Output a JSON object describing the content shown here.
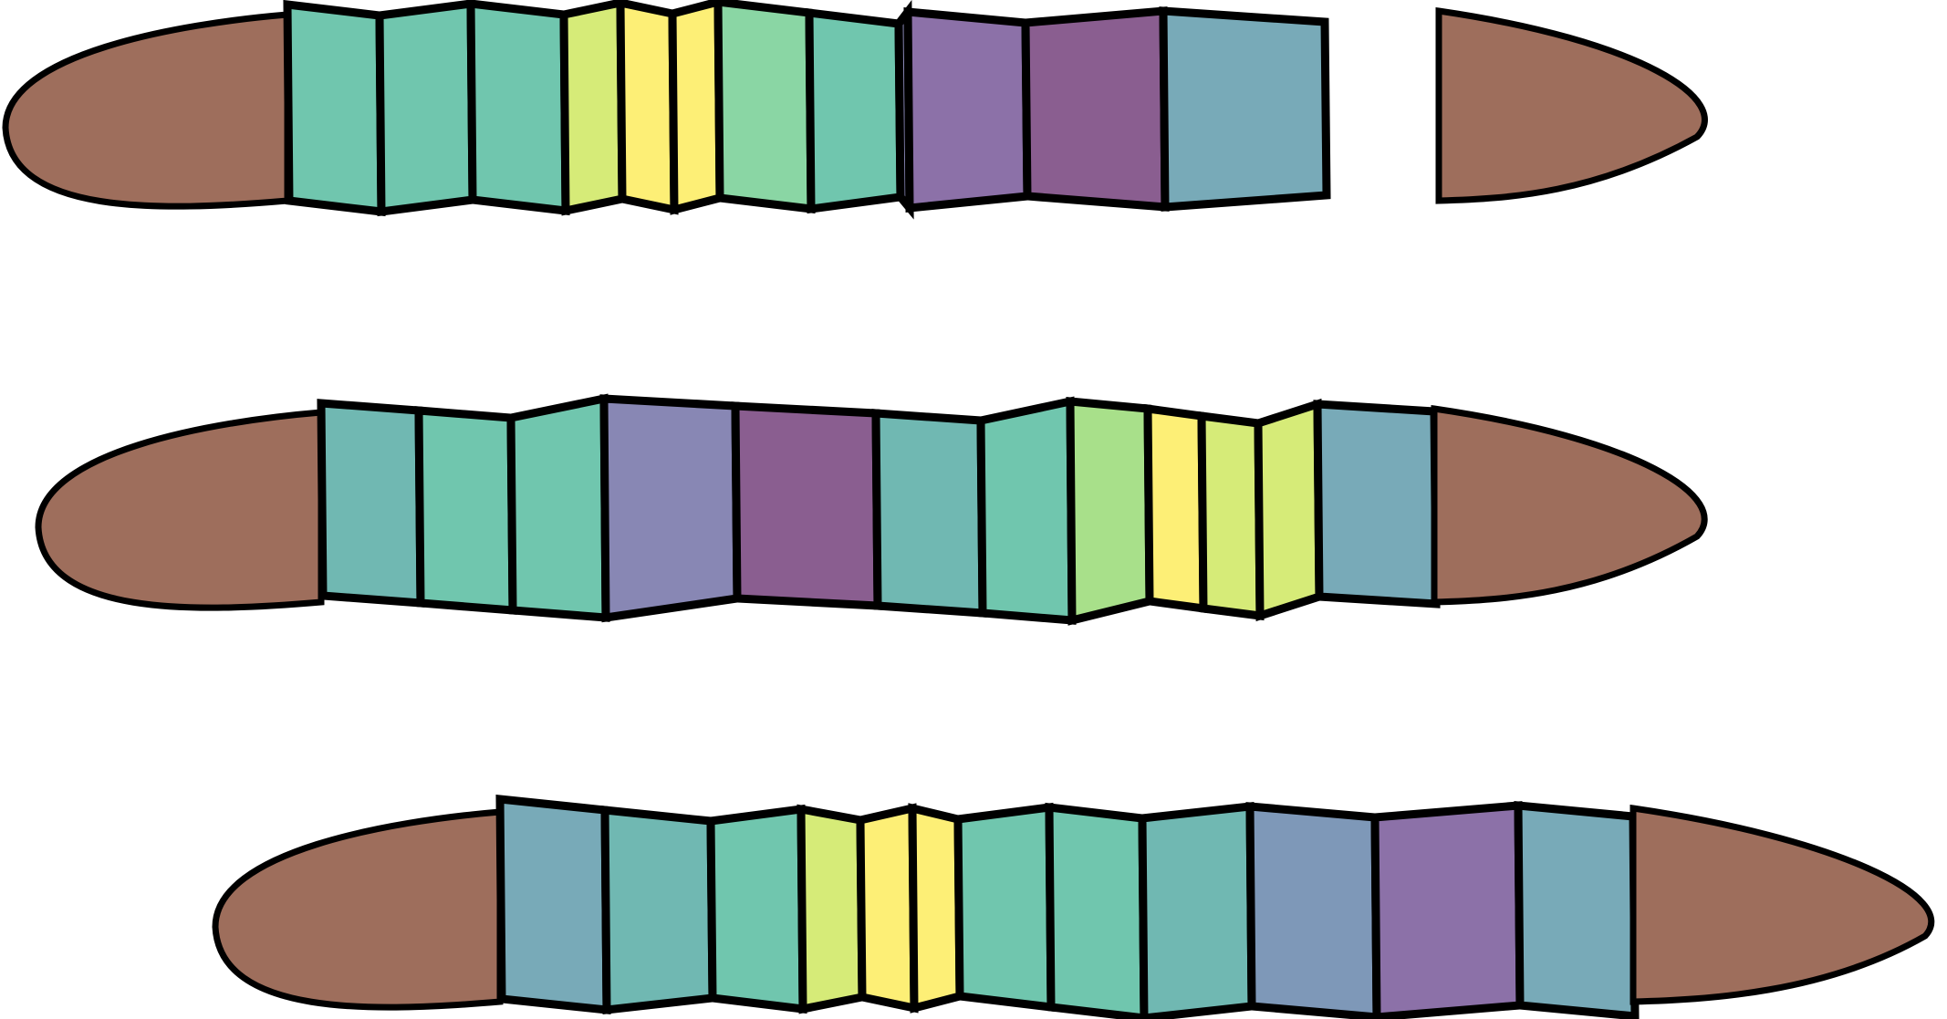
{
  "diagram": {
    "background": "#ffffff",
    "outline": "#000000",
    "palette": {
      "cap": "#9e6e5c",
      "teal": "#70c6ae",
      "teal_dark": "#70b8b2",
      "steel": "#78aab8",
      "lime": "#d6eb78",
      "yellow": "#fdef76",
      "mint": "#8ad6a4",
      "green": "#a8e08a",
      "lavender": "#8887b4",
      "violet": "#8c71a8",
      "purple": "#8a5e90",
      "blueslate": "#7e98b8"
    },
    "strips": [
      {
        "id": "strip-1",
        "segments": [
          "cap",
          "teal",
          "teal",
          "teal",
          "lime",
          "yellow",
          "yellow",
          "mint",
          "teal",
          "lavender",
          "violet",
          "purple",
          "steel",
          "cap"
        ]
      },
      {
        "id": "strip-2",
        "segments": [
          "cap",
          "teal_dark",
          "teal",
          "teal",
          "lavender",
          "purple",
          "teal_dark",
          "teal",
          "green",
          "yellow",
          "lime",
          "lime",
          "steel",
          "cap"
        ]
      },
      {
        "id": "strip-3",
        "segments": [
          "cap",
          "steel",
          "teal_dark",
          "teal",
          "lime",
          "yellow",
          "yellow",
          "teal",
          "teal",
          "teal_dark",
          "blueslate",
          "violet",
          "steel",
          "cap"
        ]
      }
    ]
  }
}
